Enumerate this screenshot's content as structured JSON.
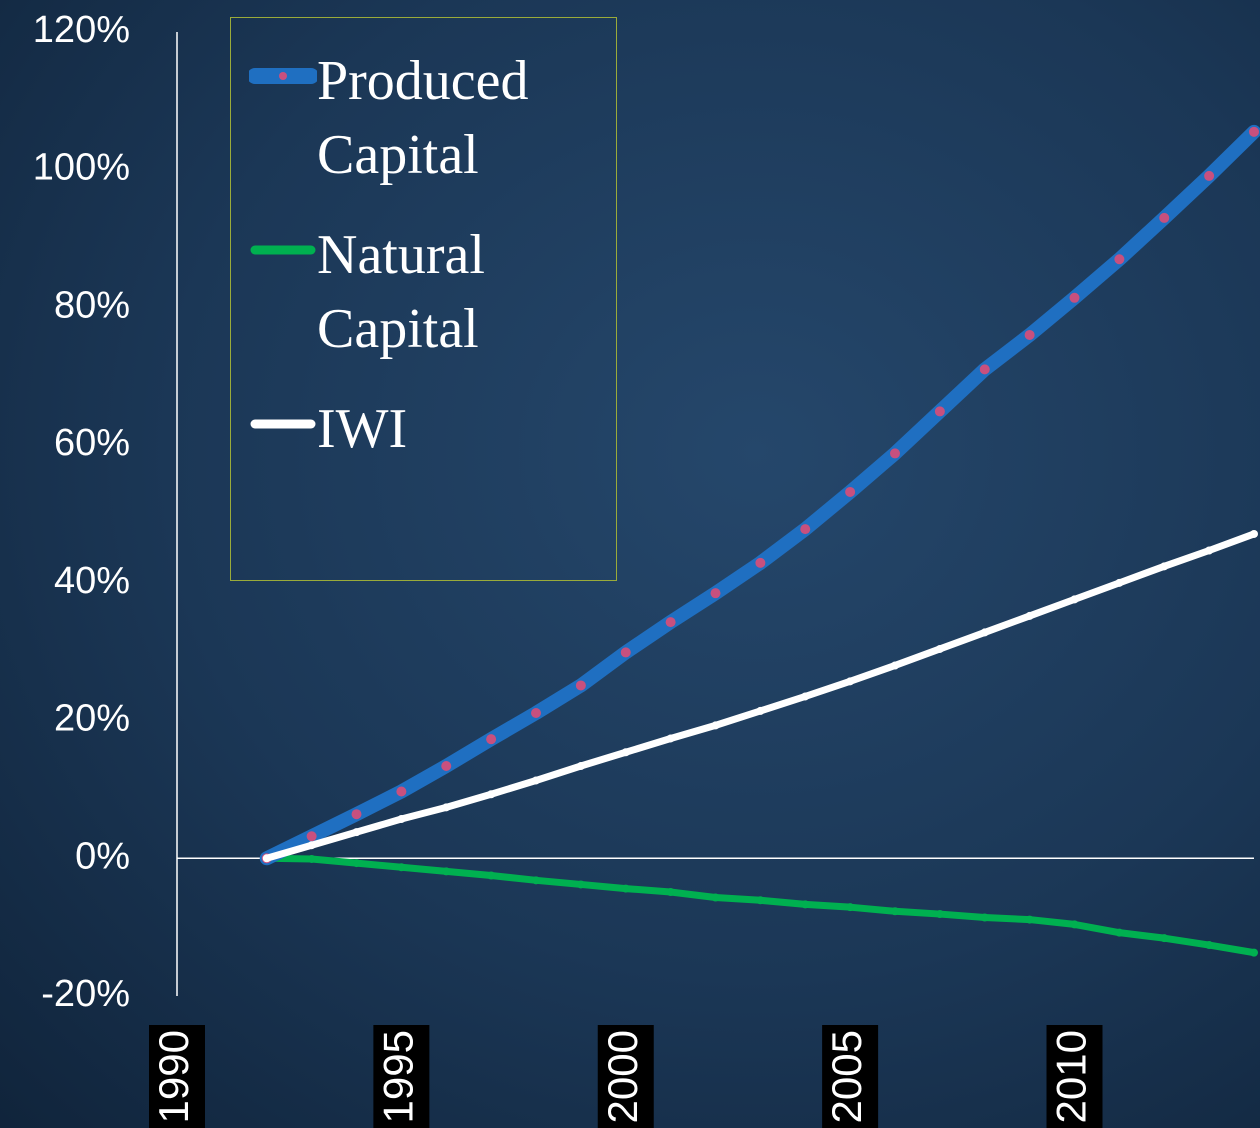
{
  "chart_data": {
    "type": "line",
    "x": [
      1992,
      1993,
      1994,
      1995,
      1996,
      1997,
      1998,
      1999,
      2000,
      2001,
      2002,
      2003,
      2004,
      2005,
      2006,
      2007,
      2008,
      2009,
      2010,
      2011,
      2012,
      2013,
      2014
    ],
    "series": [
      {
        "name": "Produced Capital",
        "color": "#1f6fc1",
        "marker_color": "#c8507e",
        "values": [
          0,
          3.2,
          6.4,
          9.7,
          13.4,
          17.3,
          21.1,
          25.1,
          29.9,
          34.3,
          38.5,
          42.9,
          47.8,
          53.2,
          58.8,
          64.9,
          71.0,
          76.0,
          81.4,
          87.0,
          93.0,
          99.1,
          105.5
        ]
      },
      {
        "name": "Natural Capital",
        "color": "#00b050",
        "values": [
          0,
          -0.1,
          -0.7,
          -1.3,
          -1.9,
          -2.5,
          -3.2,
          -3.8,
          -4.4,
          -4.9,
          -5.7,
          -6.1,
          -6.7,
          -7.1,
          -7.7,
          -8.1,
          -8.6,
          -8.9,
          -9.6,
          -10.8,
          -11.6,
          -12.6,
          -13.7
        ]
      },
      {
        "name": "IWI",
        "color": "#ffffff",
        "values": [
          0,
          1.9,
          3.8,
          5.7,
          7.4,
          9.3,
          11.3,
          13.4,
          15.4,
          17.4,
          19.3,
          21.4,
          23.5,
          25.7,
          28.0,
          30.4,
          32.8,
          35.2,
          37.6,
          40.0,
          42.4,
          44.7,
          47.1
        ]
      }
    ],
    "xlim": [
      1990,
      2014
    ],
    "xticks": [
      1990,
      1995,
      2000,
      2005,
      2010
    ],
    "ylim": [
      -20,
      120
    ],
    "yticks": [
      {
        "value": -20,
        "label": "-20%"
      },
      {
        "value": 0,
        "label": "0%"
      },
      {
        "value": 20,
        "label": "20%"
      },
      {
        "value": 40,
        "label": "40%"
      },
      {
        "value": 60,
        "label": "60%"
      },
      {
        "value": 80,
        "label": "80%"
      },
      {
        "value": 100,
        "label": "100%"
      },
      {
        "value": 120,
        "label": "120%"
      }
    ]
  }
}
